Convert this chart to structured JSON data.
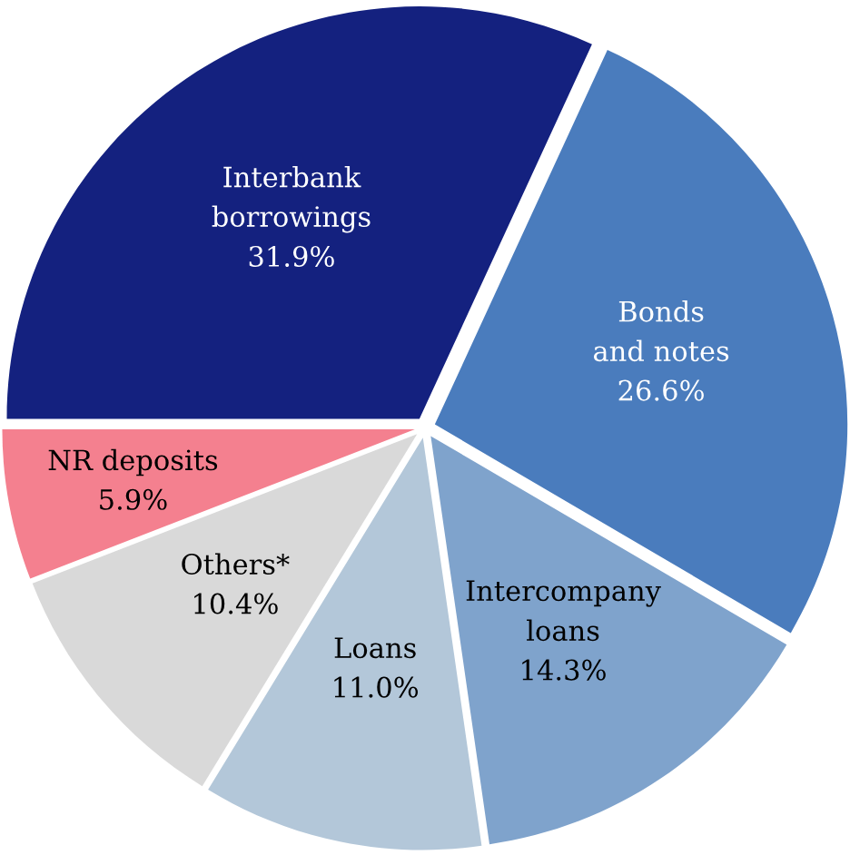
{
  "chart_data": {
    "type": "pie",
    "categories": [
      "Interbank\nborrowings",
      "Bonds\nand notes",
      "Intercompany\nloans",
      "Loans",
      "Others*",
      "NR deposits"
    ],
    "values": [
      31.9,
      26.6,
      14.3,
      11.0,
      10.4,
      5.9
    ],
    "value_labels": [
      "31.9%",
      "26.6%",
      "14.3%",
      "11.0%",
      "10.4%",
      "5.9%"
    ],
    "colors": [
      "#14217f",
      "#4a7cbd",
      "#7fa3cc",
      "#b3c7d9",
      "#d9d9d9",
      "#f4808f"
    ],
    "legend": false
  }
}
